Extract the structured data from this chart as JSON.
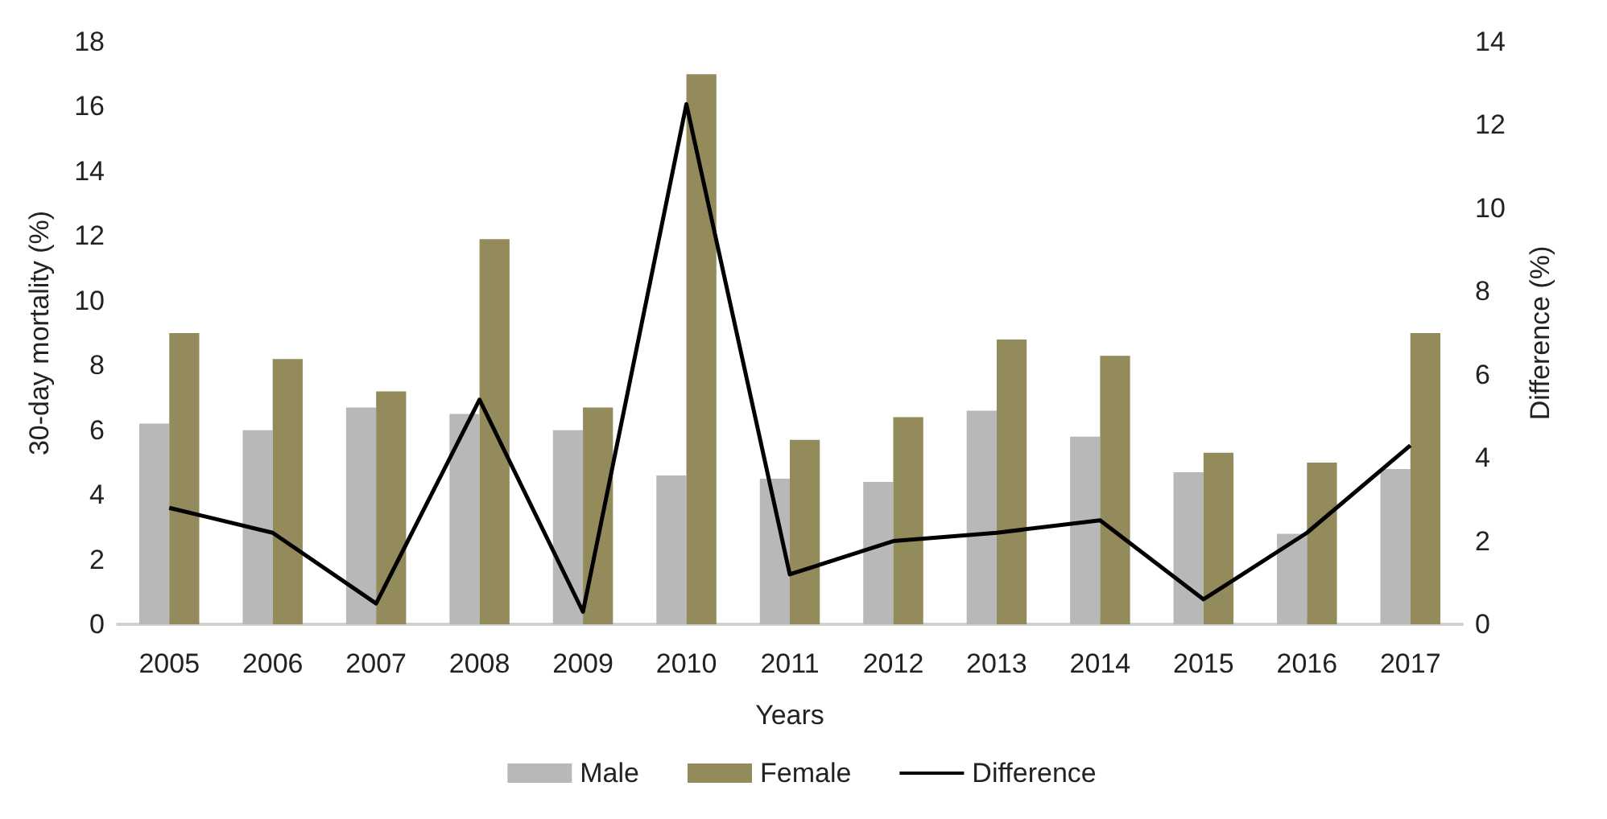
{
  "chart_data": {
    "type": "bar",
    "xlabel": "Years",
    "ylabel": "30-day mortality (%)",
    "y2label": "Difference (%)",
    "categories": [
      "2005",
      "2006",
      "2007",
      "2008",
      "2009",
      "2010",
      "2011",
      "2012",
      "2013",
      "2014",
      "2015",
      "2016",
      "2017"
    ],
    "series": [
      {
        "name": "Male",
        "color": "#b8b8b8",
        "values": [
          6.2,
          6.0,
          6.7,
          6.5,
          6.0,
          4.6,
          4.5,
          4.4,
          6.6,
          5.8,
          4.7,
          2.8,
          4.8
        ]
      },
      {
        "name": "Female",
        "color": "#938b5c",
        "values": [
          9.0,
          8.2,
          7.2,
          11.9,
          6.7,
          17.0,
          5.7,
          6.4,
          8.8,
          8.3,
          5.3,
          5.0,
          9.0
        ]
      },
      {
        "name": "Difference",
        "type": "line",
        "axis": "y2",
        "color": "#000000",
        "values": [
          2.8,
          2.2,
          0.5,
          5.4,
          0.3,
          12.5,
          1.2,
          2.0,
          2.2,
          2.5,
          0.6,
          2.2,
          4.3
        ]
      }
    ],
    "ylim": [
      0,
      18
    ],
    "yticks": [
      0,
      2,
      4,
      6,
      8,
      10,
      12,
      14,
      16,
      18
    ],
    "y2lim": [
      0,
      14
    ],
    "y2ticks": [
      0,
      2,
      4,
      6,
      8,
      10,
      12,
      14
    ],
    "grid": false,
    "legend": "bottom",
    "marker": "none"
  }
}
